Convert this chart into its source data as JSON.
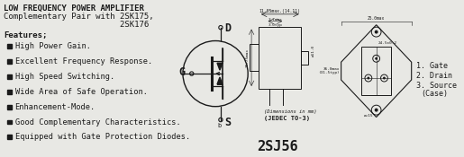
{
  "bg_color": "#e8e8e4",
  "text_color": "#1a1a1a",
  "title_line1": "LOW FREQUENCY POWER AMPLIFIER",
  "title_line2": "Complementary Pair with 2SK175,",
  "title_line3": "                        2SK176",
  "features_header": "Features;",
  "features": [
    "High Power Gain.",
    "Excellent Frequency Response.",
    "High Speed Switching.",
    "Wide Area of Safe Operation.",
    "Enhancement-Mode.",
    "Good Complementary Characteristics.",
    "Equipped with Gate Protection Diodes."
  ],
  "dim_note": "(Dimensions in mm)",
  "package": "(JEDEC TO-3)",
  "part_number": "2SJ56",
  "title_fontsize": 6.5,
  "feature_fontsize": 6.2,
  "part_fontsize": 11
}
